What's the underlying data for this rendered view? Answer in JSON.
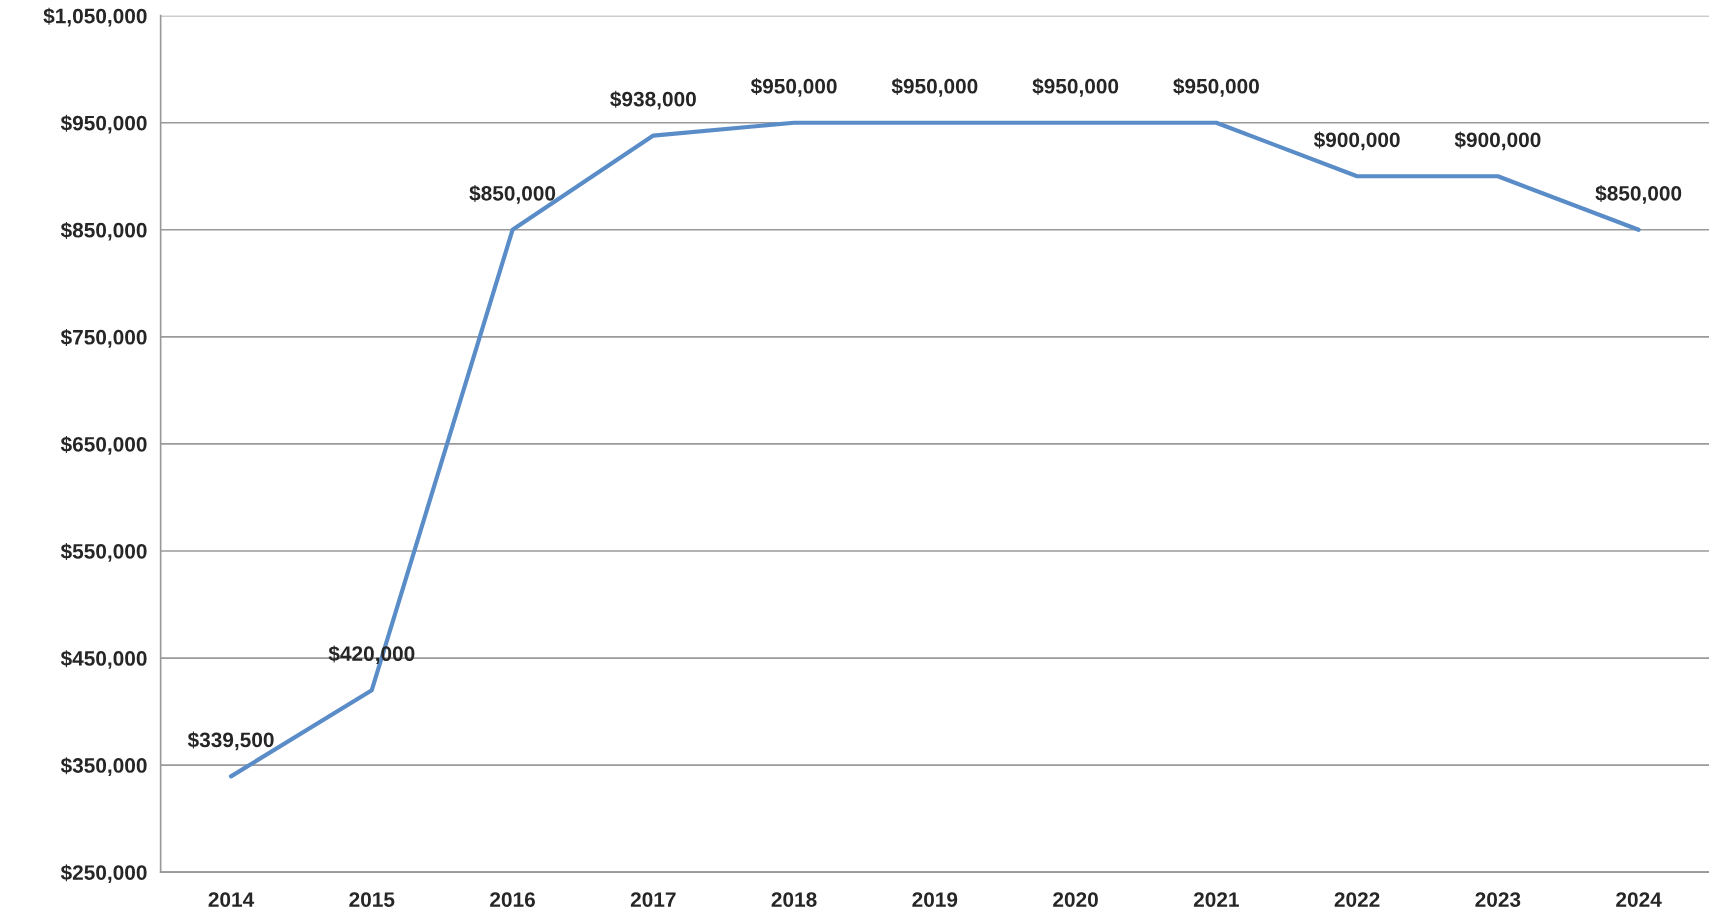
{
  "chart_data": {
    "type": "line",
    "categories": [
      "2014",
      "2015",
      "2016",
      "2017",
      "2018",
      "2019",
      "2020",
      "2021",
      "2022",
      "2023",
      "2024"
    ],
    "values": [
      339500,
      420000,
      850000,
      938000,
      950000,
      950000,
      950000,
      950000,
      900000,
      900000,
      850000
    ],
    "value_labels": [
      "$339,500",
      "$420,000",
      "$850,000",
      "$938,000",
      "$950,000",
      "$950,000",
      "$950,000",
      "$950,000",
      "$900,000",
      "$900,000",
      "$850,000"
    ],
    "color": "#5a8dc8",
    "ylim": [
      250000,
      1050000
    ],
    "yticks": [
      {
        "value": 250000,
        "label": "$250,000"
      },
      {
        "value": 350000,
        "label": "$350,000"
      },
      {
        "value": 450000,
        "label": "$450,000"
      },
      {
        "value": 550000,
        "label": "$550,000"
      },
      {
        "value": 650000,
        "label": "$650,000"
      },
      {
        "value": 750000,
        "label": "$750,000"
      },
      {
        "value": 850000,
        "label": "$850,000"
      },
      {
        "value": 950000,
        "label": "$950,000"
      },
      {
        "value": 1050000,
        "label": "$1,050,000"
      }
    ],
    "grid": "y",
    "legend": false,
    "marker": "none",
    "line_style": "solid"
  }
}
